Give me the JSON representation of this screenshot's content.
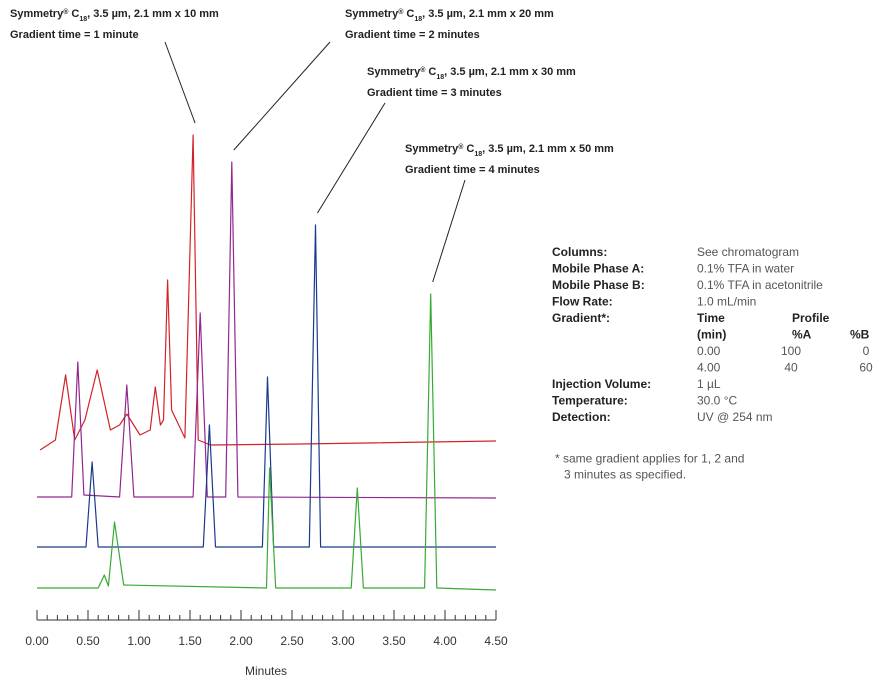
{
  "chart_data": {
    "type": "line",
    "xlabel": "Minutes",
    "xlim": [
      0,
      4.5
    ],
    "ylim": [
      0,
      520
    ],
    "xticks": [
      {
        "value": 0,
        "label": "0.00"
      },
      {
        "value": 0.5,
        "label": "0.50"
      },
      {
        "value": 1,
        "label": "1.00"
      },
      {
        "value": 1.5,
        "label": "1.50"
      },
      {
        "value": 2,
        "label": "2.00"
      },
      {
        "value": 2.5,
        "label": "2.50"
      },
      {
        "value": 3,
        "label": "3.00"
      },
      {
        "value": 3.5,
        "label": "3.50"
      },
      {
        "value": 4,
        "label": "4.00"
      },
      {
        "value": 4.5,
        "label": "4.50"
      }
    ],
    "series": [
      {
        "color": "#d2232a",
        "x": [
          0.03,
          0.18,
          0.28,
          0.37,
          0.47,
          0.59,
          0.72,
          0.81,
          0.88,
          1.01,
          1.11,
          1.16,
          1.21,
          1.24,
          1.28,
          1.32,
          1.45,
          1.53,
          1.58,
          1.7,
          2.58,
          4.5
        ],
        "values": [
          170,
          180,
          245,
          180,
          200,
          250,
          190,
          195,
          206,
          185,
          190,
          233,
          195,
          200,
          340,
          210,
          182,
          485,
          180,
          175,
          176,
          179
        ]
      },
      {
        "color": "#93278f",
        "x": [
          0.0,
          0.34,
          0.4,
          0.46,
          0.81,
          0.88,
          0.95,
          1.53,
          1.6,
          1.67,
          1.85,
          1.91,
          1.97,
          4.5
        ],
        "values": [
          123,
          123,
          258,
          125,
          123,
          235,
          123,
          123,
          307,
          123,
          123,
          458,
          123,
          122
        ]
      },
      {
        "color": "#1b3a8c",
        "x": [
          0.0,
          0.48,
          0.54,
          0.6,
          1.63,
          1.69,
          1.75,
          2.21,
          2.26,
          2.32,
          2.67,
          2.73,
          2.78,
          4.5
        ],
        "values": [
          73,
          73,
          158,
          73,
          73,
          195,
          73,
          73,
          243,
          73,
          73,
          395,
          73,
          73
        ]
      },
      {
        "color": "#39a935",
        "x": [
          0.0,
          0.6,
          0.66,
          0.7,
          0.76,
          0.85,
          2.25,
          2.28,
          2.34,
          3.08,
          3.14,
          3.2,
          3.8,
          3.86,
          3.92,
          4.5
        ],
        "values": [
          32,
          32,
          45,
          34,
          98,
          35,
          32,
          152,
          32,
          32,
          132,
          32,
          32,
          326,
          32,
          30
        ]
      }
    ],
    "annotations": [
      {
        "brand": "Symmetry",
        "mark": "®",
        "phase": "C",
        "phase_sub": "18",
        "spec": ", 3.5 µm, 2.1 mm x 10 mm",
        "gradient": "Gradient time = 1 minute"
      },
      {
        "brand": "Symmetry",
        "mark": "®",
        "phase": "C",
        "phase_sub": "18",
        "spec": ", 3.5 µm, 2.1 mm x 20 mm",
        "gradient": "Gradient time = 2 minutes"
      },
      {
        "brand": "Symmetry",
        "mark": "®",
        "phase": "C",
        "phase_sub": "18",
        "spec": ", 3.5 µm, 2.1 mm x 30 mm",
        "gradient": "Gradient time = 3 minutes"
      },
      {
        "brand": "Symmetry",
        "mark": "®",
        "phase": "C",
        "phase_sub": "18",
        "spec": ", 3.5 µm, 2.1 mm x 50 mm",
        "gradient": "Gradient time = 4 minutes"
      }
    ]
  },
  "conditions": {
    "top": [
      {
        "label": "Columns:",
        "value": "See chromatogram"
      },
      {
        "label": "Mobile Phase A:",
        "value": "0.1% TFA in water"
      },
      {
        "label": "Mobile Phase B:",
        "value": "0.1% TFA in acetonitrile"
      },
      {
        "label": "Flow Rate:",
        "value": "1.0 mL/min"
      }
    ],
    "gradient": {
      "label": "Gradient*:",
      "header1": [
        "Time",
        "Profile"
      ],
      "header2": [
        "(min)",
        "%A",
        "%B"
      ],
      "rows": [
        [
          "0.00",
          "100",
          "0"
        ],
        [
          "4.00",
          "40",
          "60"
        ]
      ]
    },
    "bottom": [
      {
        "label": "Injection Volume:",
        "value": "1 µL"
      },
      {
        "label": "Temperature:",
        "value": "30.0 °C"
      },
      {
        "label": "Detection:",
        "value": "UV @ 254 nm"
      }
    ],
    "footnote": [
      "* same gradient applies for 1, 2 and",
      "3 minutes as specified."
    ]
  }
}
